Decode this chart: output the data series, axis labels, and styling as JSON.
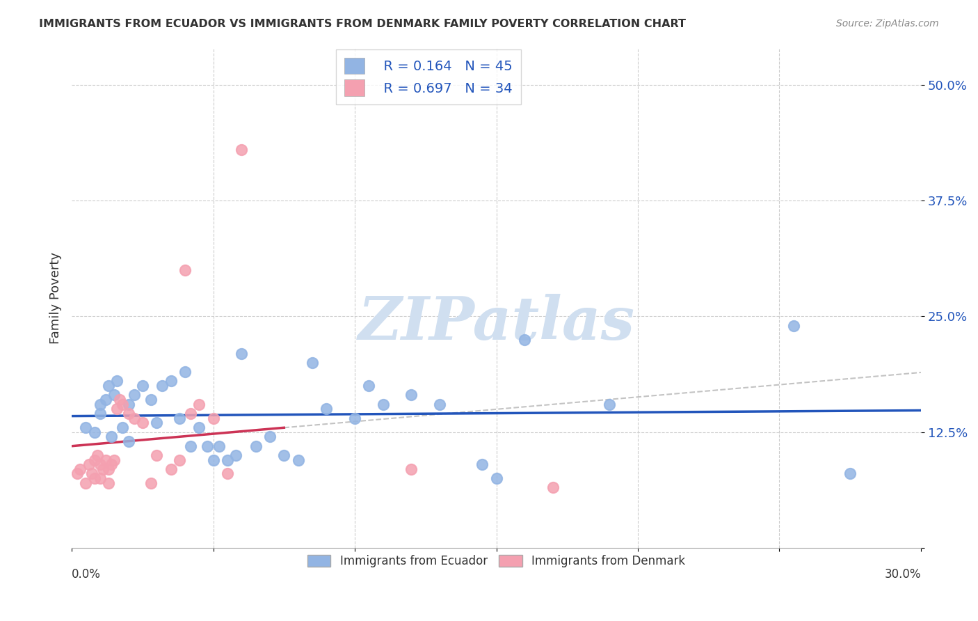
{
  "title": "IMMIGRANTS FROM ECUADOR VS IMMIGRANTS FROM DENMARK FAMILY POVERTY CORRELATION CHART",
  "source": "Source: ZipAtlas.com",
  "ylabel": "Family Poverty",
  "yticks": [
    0.0,
    0.125,
    0.25,
    0.375,
    0.5
  ],
  "ytick_labels": [
    "",
    "12.5%",
    "25.0%",
    "37.5%",
    "50.0%"
  ],
  "xlim": [
    0.0,
    0.3
  ],
  "ylim": [
    0.0,
    0.54
  ],
  "ecuador_color": "#92b4e3",
  "denmark_color": "#f4a0b0",
  "ecuador_line_color": "#2255bb",
  "denmark_line_color": "#cc3355",
  "ecuador_R": 0.164,
  "ecuador_N": 45,
  "denmark_R": 0.697,
  "denmark_N": 34,
  "ecuador_x": [
    0.005,
    0.008,
    0.01,
    0.01,
    0.012,
    0.013,
    0.014,
    0.015,
    0.016,
    0.018,
    0.02,
    0.02,
    0.022,
    0.025,
    0.028,
    0.03,
    0.032,
    0.035,
    0.038,
    0.04,
    0.042,
    0.045,
    0.048,
    0.05,
    0.052,
    0.055,
    0.058,
    0.06,
    0.065,
    0.07,
    0.075,
    0.08,
    0.085,
    0.09,
    0.1,
    0.105,
    0.11,
    0.12,
    0.13,
    0.145,
    0.15,
    0.16,
    0.19,
    0.255,
    0.275
  ],
  "ecuador_y": [
    0.13,
    0.125,
    0.155,
    0.145,
    0.16,
    0.175,
    0.12,
    0.165,
    0.18,
    0.13,
    0.115,
    0.155,
    0.165,
    0.175,
    0.16,
    0.135,
    0.175,
    0.18,
    0.14,
    0.19,
    0.11,
    0.13,
    0.11,
    0.095,
    0.11,
    0.095,
    0.1,
    0.21,
    0.11,
    0.12,
    0.1,
    0.095,
    0.2,
    0.15,
    0.14,
    0.175,
    0.155,
    0.165,
    0.155,
    0.09,
    0.075,
    0.225,
    0.155,
    0.24,
    0.08
  ],
  "denmark_x": [
    0.002,
    0.003,
    0.005,
    0.006,
    0.007,
    0.008,
    0.008,
    0.009,
    0.01,
    0.01,
    0.011,
    0.012,
    0.013,
    0.013,
    0.014,
    0.015,
    0.016,
    0.017,
    0.018,
    0.02,
    0.022,
    0.025,
    0.028,
    0.03,
    0.035,
    0.038,
    0.04,
    0.042,
    0.045,
    0.05,
    0.055,
    0.06,
    0.12,
    0.17
  ],
  "denmark_y": [
    0.08,
    0.085,
    0.07,
    0.09,
    0.08,
    0.095,
    0.075,
    0.1,
    0.09,
    0.075,
    0.085,
    0.095,
    0.085,
    0.07,
    0.09,
    0.095,
    0.15,
    0.16,
    0.155,
    0.145,
    0.14,
    0.135,
    0.07,
    0.1,
    0.085,
    0.095,
    0.3,
    0.145,
    0.155,
    0.14,
    0.08,
    0.43,
    0.085,
    0.065
  ],
  "watermark": "ZIPatlas",
  "watermark_color": "#d0dff0",
  "legend_labels": [
    "Immigrants from Ecuador",
    "Immigrants from Denmark"
  ]
}
